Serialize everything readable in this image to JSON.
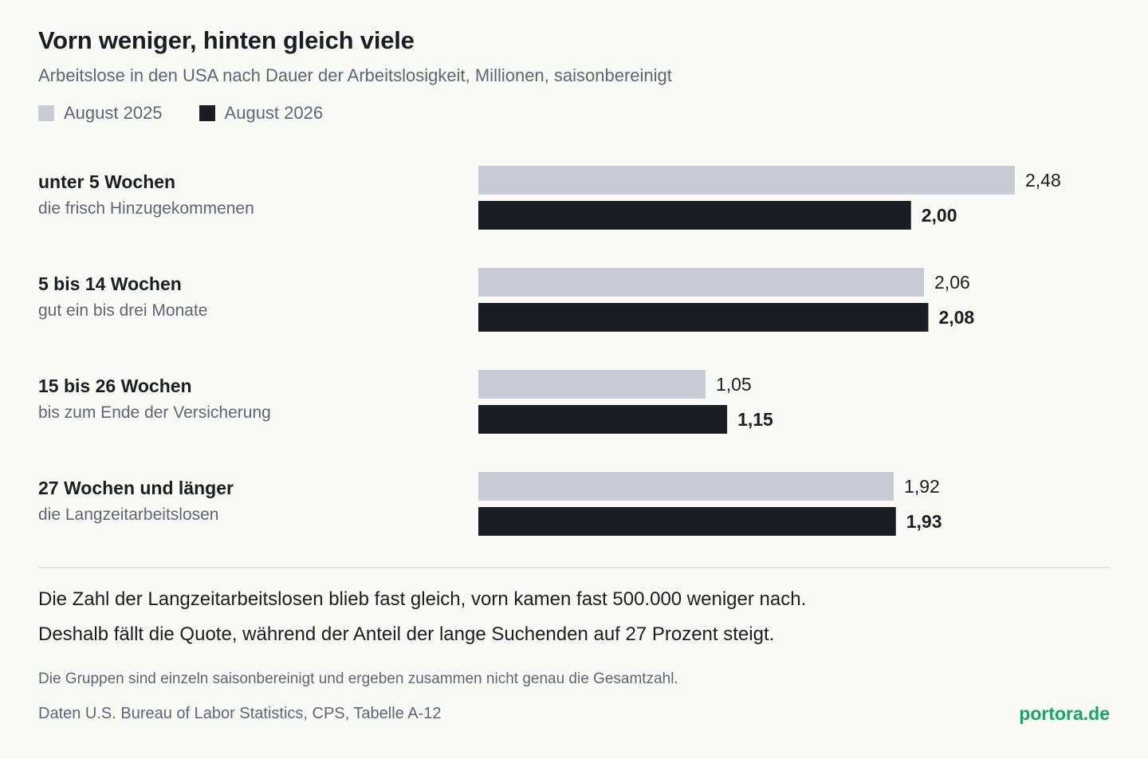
{
  "header": {
    "title": "Vorn weniger, hinten gleich viele",
    "subtitle": "Arbeitslose in den USA nach Dauer der Arbeitslosigkeit, Millionen, saisonbereinigt"
  },
  "colors": {
    "previous": "#c9ccd4",
    "current": "#1b1d23",
    "brand": "#14a862"
  },
  "chart_data": {
    "type": "bar",
    "orientation": "horizontal",
    "title": "Vorn weniger, hinten gleich viele",
    "subtitle": "Arbeitslose in den USA nach Dauer der Arbeitslosigkeit, Millionen, saisonbereinigt",
    "grid": false,
    "legend_position": "top-left",
    "xlim": [
      0,
      2.48
    ],
    "categories": [
      "unter 5 Wochen",
      "5 bis 14 Wochen",
      "15 bis 26 Wochen",
      "27 Wochen und länger"
    ],
    "category_notes": [
      "die frisch Hinzugekommenen",
      "gut ein bis drei Monate",
      "bis zum Ende der Versicherung",
      "die Langzeitarbeitslosen"
    ],
    "series": [
      {
        "name": "August 2025",
        "values": [
          2.48,
          2.06,
          1.05,
          1.92
        ],
        "labels": [
          "2,48",
          "2,06",
          "1,05",
          "1,92"
        ]
      },
      {
        "name": "August 2026",
        "values": [
          2.0,
          2.08,
          1.15,
          1.93
        ],
        "labels": [
          "2,00",
          "2,08",
          "1,15",
          "1,93"
        ]
      }
    ]
  },
  "footer": {
    "takeaway_1": "Die Zahl der Langzeitarbeitslosen blieb fast gleich, vorn kamen fast 500.000 weniger nach.",
    "takeaway_2": "Deshalb fällt die Quote, während der Anteil der lange Suchenden auf 27 Prozent steigt.",
    "note": "Die Gruppen sind einzeln saisonbereinigt und ergeben zusammen nicht genau die Gesamtzahl.",
    "source": "Daten U.S. Bureau of Labor Statistics, CPS, Tabelle A-12",
    "brand": "portora.de"
  }
}
